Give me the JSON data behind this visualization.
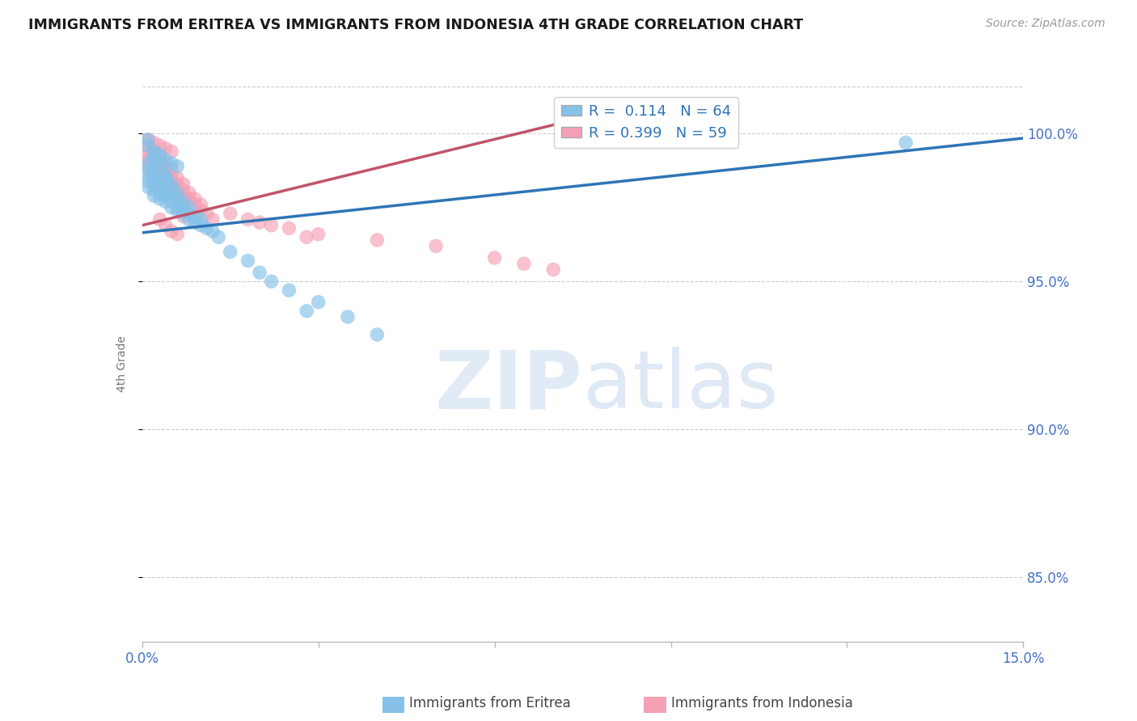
{
  "title": "IMMIGRANTS FROM ERITREA VS IMMIGRANTS FROM INDONESIA 4TH GRADE CORRELATION CHART",
  "source_text": "Source: ZipAtlas.com",
  "ylabel": "4th Grade",
  "xlim": [
    0.0,
    0.15
  ],
  "ylim": [
    0.828,
    1.016
  ],
  "xticks": [
    0.0,
    0.03,
    0.06,
    0.09,
    0.12,
    0.15
  ],
  "xtick_labels": [
    "0.0%",
    "",
    "",
    "",
    "",
    "15.0%"
  ],
  "yticks": [
    0.85,
    0.9,
    0.95,
    1.0
  ],
  "ytick_labels": [
    "85.0%",
    "90.0%",
    "95.0%",
    "100.0%"
  ],
  "eritrea_R": 0.114,
  "eritrea_N": 64,
  "indonesia_R": 0.399,
  "indonesia_N": 59,
  "eritrea_color": "#85C1E8",
  "indonesia_color": "#F4A0B5",
  "eritrea_line_color": "#2E75B6",
  "indonesia_line_color": "#C0546A",
  "background_color": "#FFFFFF",
  "legend_R_color": "#2E75B6",
  "grid_color": "#CCCCCC",
  "title_color": "#1A1A1A",
  "axis_label_color": "#777777",
  "tick_color": "#4472C4",
  "source_color": "#999999",
  "er_line_x0": 0.0,
  "er_line_x1": 0.15,
  "er_line_y0": 0.9665,
  "er_line_y1": 0.9985,
  "in_line_x0": 0.0,
  "in_line_x1": 0.07,
  "in_line_y0": 0.969,
  "in_line_y1": 1.003,
  "eritrea_x": [
    0.001,
    0.001,
    0.001,
    0.001,
    0.001,
    0.002,
    0.002,
    0.002,
    0.002,
    0.002,
    0.002,
    0.003,
    0.003,
    0.003,
    0.003,
    0.003,
    0.003,
    0.004,
    0.004,
    0.004,
    0.004,
    0.004,
    0.005,
    0.005,
    0.005,
    0.005,
    0.005,
    0.006,
    0.006,
    0.006,
    0.006,
    0.007,
    0.007,
    0.007,
    0.008,
    0.008,
    0.008,
    0.009,
    0.009,
    0.01,
    0.01,
    0.011,
    0.012,
    0.013,
    0.001,
    0.001,
    0.002,
    0.002,
    0.003,
    0.004,
    0.005,
    0.006,
    0.003,
    0.004,
    0.022,
    0.025,
    0.03,
    0.035,
    0.04,
    0.028,
    0.02,
    0.018,
    0.015,
    0.13
  ],
  "eritrea_y": [
    0.99,
    0.988,
    0.986,
    0.984,
    0.982,
    0.991,
    0.988,
    0.985,
    0.983,
    0.981,
    0.979,
    0.989,
    0.987,
    0.984,
    0.982,
    0.98,
    0.978,
    0.986,
    0.984,
    0.981,
    0.979,
    0.977,
    0.983,
    0.981,
    0.979,
    0.977,
    0.975,
    0.98,
    0.978,
    0.976,
    0.974,
    0.977,
    0.975,
    0.973,
    0.975,
    0.973,
    0.971,
    0.972,
    0.97,
    0.971,
    0.969,
    0.968,
    0.967,
    0.965,
    0.998,
    0.996,
    0.994,
    0.993,
    0.992,
    0.991,
    0.99,
    0.989,
    0.993,
    0.985,
    0.95,
    0.947,
    0.943,
    0.938,
    0.932,
    0.94,
    0.953,
    0.957,
    0.96,
    0.997
  ],
  "indonesia_x": [
    0.001,
    0.001,
    0.001,
    0.001,
    0.002,
    0.002,
    0.002,
    0.002,
    0.002,
    0.003,
    0.003,
    0.003,
    0.003,
    0.003,
    0.004,
    0.004,
    0.004,
    0.004,
    0.005,
    0.005,
    0.005,
    0.005,
    0.006,
    0.006,
    0.006,
    0.007,
    0.007,
    0.007,
    0.008,
    0.008,
    0.009,
    0.009,
    0.01,
    0.01,
    0.011,
    0.012,
    0.001,
    0.002,
    0.003,
    0.004,
    0.005,
    0.003,
    0.004,
    0.005,
    0.006,
    0.02,
    0.025,
    0.03,
    0.04,
    0.05,
    0.015,
    0.018,
    0.022,
    0.028,
    0.06,
    0.065,
    0.07,
    0.006,
    0.007
  ],
  "indonesia_y": [
    0.995,
    0.993,
    0.991,
    0.989,
    0.994,
    0.992,
    0.99,
    0.988,
    0.986,
    0.992,
    0.99,
    0.988,
    0.986,
    0.984,
    0.99,
    0.988,
    0.986,
    0.984,
    0.988,
    0.986,
    0.984,
    0.982,
    0.985,
    0.983,
    0.981,
    0.983,
    0.981,
    0.979,
    0.98,
    0.978,
    0.978,
    0.976,
    0.976,
    0.974,
    0.973,
    0.971,
    0.998,
    0.997,
    0.996,
    0.995,
    0.994,
    0.971,
    0.969,
    0.967,
    0.966,
    0.97,
    0.968,
    0.966,
    0.964,
    0.962,
    0.973,
    0.971,
    0.969,
    0.965,
    0.958,
    0.956,
    0.954,
    0.975,
    0.972
  ]
}
